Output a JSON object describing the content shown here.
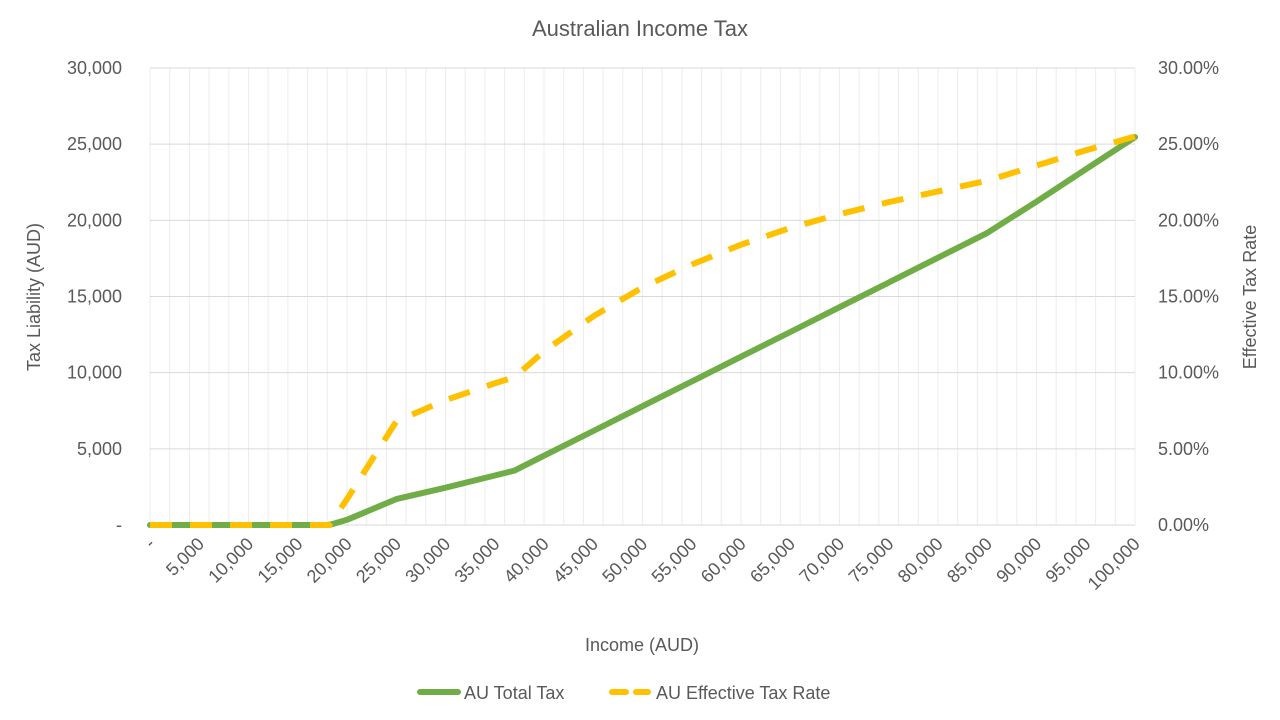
{
  "chart_data": {
    "type": "line",
    "title": "Australian Income Tax",
    "xlabel": "Income (AUD)",
    "ylabel": "Tax Liability (AUD)",
    "y2label": "Effective Tax Rate",
    "x_tick_labels": [
      "-",
      "5,000",
      "10,000",
      "15,000",
      "20,000",
      "25,000",
      "30,000",
      "35,000",
      "40,000",
      "45,000",
      "50,000",
      "55,000",
      "60,000",
      "65,000",
      "70,000",
      "75,000",
      "80,000",
      "85,000",
      "90,000",
      "95,000",
      "100,000"
    ],
    "y_tick_labels": [
      "-",
      "5,000",
      "10,000",
      "15,000",
      "20,000",
      "25,000",
      "30,000"
    ],
    "y2_tick_labels": [
      "0.00%",
      "5.00%",
      "10.00%",
      "15.00%",
      "20.00%",
      "25.00%",
      "30.00%"
    ],
    "xlim": [
      0,
      100000
    ],
    "ylim": [
      0,
      30000
    ],
    "y2lim": [
      0,
      0.3
    ],
    "grid": true,
    "legend_position": "bottom",
    "x": [
      0,
      5000,
      10000,
      15000,
      18200,
      20000,
      25000,
      30000,
      35000,
      37000,
      40000,
      45000,
      50000,
      55000,
      60000,
      65000,
      70000,
      75000,
      80000,
      85000,
      90000,
      95000,
      100000
    ],
    "series": [
      {
        "name": "AU Total Tax",
        "axis": "left",
        "color": "#70AD47",
        "dash": "solid",
        "values": [
          0,
          0,
          0,
          0,
          0,
          342,
          1700,
          2450,
          3250,
          3572,
          4547,
          6172,
          7797,
          9422,
          11047,
          12672,
          14297,
          15922,
          17547,
          19172,
          21232,
          23347,
          25462
        ]
      },
      {
        "name": "AU Effective Tax Rate",
        "axis": "right",
        "color": "#FFC000",
        "dash": "dashed",
        "values": [
          0,
          0,
          0,
          0,
          0,
          0.017,
          0.068,
          0.082,
          0.093,
          0.097,
          0.114,
          0.137,
          0.156,
          0.171,
          0.184,
          0.195,
          0.204,
          0.212,
          0.219,
          0.226,
          0.236,
          0.246,
          0.255
        ]
      }
    ]
  }
}
